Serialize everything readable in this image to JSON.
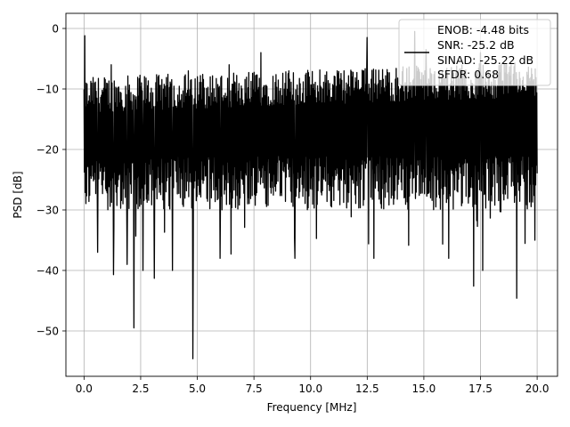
{
  "chart_data": {
    "type": "line",
    "xlabel": "Frequency [MHz]",
    "ylabel": "PSD [dB]",
    "xlim": [
      -0.8,
      20.9
    ],
    "ylim": [
      -57.5,
      2.5
    ],
    "x_ticks": [
      0.0,
      2.5,
      5.0,
      7.5,
      10.0,
      12.5,
      15.0,
      17.5,
      20.0
    ],
    "x_tick_labels": [
      "0.0",
      "2.5",
      "5.0",
      "7.5",
      "10.0",
      "12.5",
      "15.0",
      "17.5",
      "20.0"
    ],
    "y_ticks": [
      0,
      -10,
      -20,
      -30,
      -40,
      -50
    ],
    "y_tick_labels": [
      "0",
      "−10",
      "−20",
      "−30",
      "−40",
      "−50"
    ],
    "grid": true,
    "legend_placement": "top-right",
    "line_color": "#000000",
    "legend_lines": [
      "ENOB: -4.48 bits",
      "SNR: -25.2 dB",
      "SINAD: -25.22 dB",
      "SFDR: 0.68"
    ],
    "series": [
      {
        "x_start": 0.0,
        "x_end": 20.0,
        "points": 1200,
        "noise_floor_mean_db": -17,
        "upper_envelope_db": -8,
        "lower_envelope_db": -27,
        "peaks": [
          {
            "x": 0.04,
            "y": -1.2
          },
          {
            "x": 0.2,
            "y": -12
          },
          {
            "x": 1.2,
            "y": -6
          },
          {
            "x": 4.6,
            "y": -7
          },
          {
            "x": 6.4,
            "y": -6
          },
          {
            "x": 7.8,
            "y": -4
          },
          {
            "x": 12.5,
            "y": -1.5
          },
          {
            "x": 14.6,
            "y": -0.5
          },
          {
            "x": 15.1,
            "y": -3.5
          },
          {
            "x": 17.5,
            "y": -4
          }
        ],
        "dips": [
          {
            "x": 0.6,
            "y": -37
          },
          {
            "x": 1.3,
            "y": -40.7
          },
          {
            "x": 1.9,
            "y": -39
          },
          {
            "x": 2.2,
            "y": -49.5
          },
          {
            "x": 2.6,
            "y": -40
          },
          {
            "x": 3.1,
            "y": -41.3
          },
          {
            "x": 3.9,
            "y": -40
          },
          {
            "x": 4.8,
            "y": -54.6
          },
          {
            "x": 6.0,
            "y": -38
          },
          {
            "x": 9.3,
            "y": -38
          },
          {
            "x": 12.8,
            "y": -38
          },
          {
            "x": 16.1,
            "y": -38
          },
          {
            "x": 17.2,
            "y": -42.6
          },
          {
            "x": 17.6,
            "y": -40
          },
          {
            "x": 19.1,
            "y": -44.6
          },
          {
            "x": 19.9,
            "y": -35
          }
        ]
      }
    ]
  }
}
